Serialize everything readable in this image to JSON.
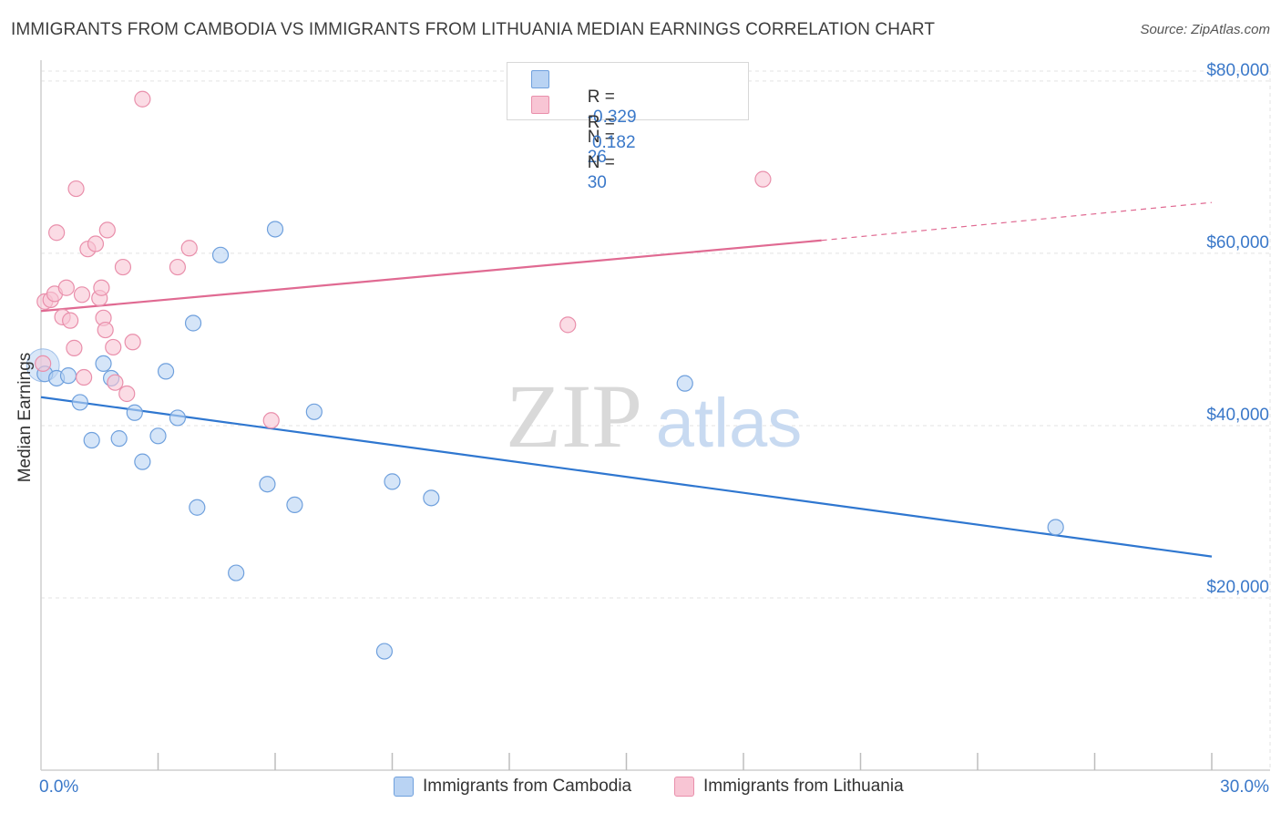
{
  "title": "IMMIGRANTS FROM CAMBODIA VS IMMIGRANTS FROM LITHUANIA MEDIAN EARNINGS CORRELATION CHART",
  "source": "Source: ZipAtlas.com",
  "watermark": {
    "zip": "ZIP",
    "atlas": "atlas"
  },
  "colors": {
    "blue_fill": "#b9d3f3",
    "blue_stroke": "#6fa0dd",
    "blue_line": "#2f77d0",
    "pink_fill": "#f8c5d4",
    "pink_stroke": "#e98fab",
    "pink_line": "#e06a92",
    "axis_label": "#3a78c9",
    "grid": "#e3e3e3"
  },
  "legend": {
    "rows": [
      {
        "r_label": "R =",
        "r_value": "-0.329",
        "n_label": "N =",
        "n_value": "26"
      },
      {
        "r_label": "R =",
        "r_value": " 0.182",
        "n_label": "N =",
        "n_value": "30"
      }
    ]
  },
  "bottom_legend": [
    "Immigrants from Cambodia",
    "Immigrants from Lithuania"
  ],
  "chart_data": {
    "type": "scatter",
    "xlabel": "",
    "ylabel": "Median Earnings",
    "xlim": [
      0,
      30
    ],
    "ylim": [
      0,
      82000
    ],
    "x_tick_labels": [
      "0.0%",
      "30.0%"
    ],
    "y_ticks": [
      20000,
      40000,
      60000,
      80000
    ],
    "y_tick_labels": [
      "$20,000",
      "$40,000",
      "$60,000",
      "$80,000"
    ],
    "grid": true,
    "legend_position": "top-center",
    "series": [
      {
        "name": "Immigrants from Cambodia",
        "color": "blue",
        "r": -0.329,
        "n": 26,
        "points": [
          [
            0.1,
            46000
          ],
          [
            0.4,
            45500
          ],
          [
            0.7,
            45800
          ],
          [
            1.0,
            42700
          ],
          [
            1.3,
            38300
          ],
          [
            1.6,
            47200
          ],
          [
            1.8,
            45500
          ],
          [
            2.0,
            38500
          ],
          [
            2.4,
            41500
          ],
          [
            2.6,
            35800
          ],
          [
            3.0,
            38800
          ],
          [
            3.2,
            46300
          ],
          [
            3.5,
            40900
          ],
          [
            3.9,
            51900
          ],
          [
            4.0,
            30500
          ],
          [
            4.6,
            59800
          ],
          [
            5.0,
            22900
          ],
          [
            5.8,
            33200
          ],
          [
            6.0,
            62800
          ],
          [
            6.5,
            30800
          ],
          [
            7.0,
            41600
          ],
          [
            8.8,
            13800
          ],
          [
            9.0,
            33500
          ],
          [
            10.0,
            31600
          ],
          [
            16.5,
            44900
          ],
          [
            26.0,
            28200
          ]
        ],
        "trend": {
          "x": [
            0,
            30
          ],
          "y": [
            43300,
            24800
          ]
        }
      },
      {
        "name": "Immigrants from Lithuania",
        "color": "pink",
        "r": 0.182,
        "n": 30,
        "points": [
          [
            0.05,
            47200
          ],
          [
            0.1,
            54400
          ],
          [
            0.25,
            54600
          ],
          [
            0.35,
            55300
          ],
          [
            0.4,
            62400
          ],
          [
            0.55,
            52600
          ],
          [
            0.65,
            56000
          ],
          [
            0.75,
            52200
          ],
          [
            0.85,
            49000
          ],
          [
            0.9,
            67500
          ],
          [
            1.05,
            55200
          ],
          [
            1.1,
            45600
          ],
          [
            1.2,
            60500
          ],
          [
            1.4,
            61100
          ],
          [
            1.5,
            54800
          ],
          [
            1.6,
            52500
          ],
          [
            1.65,
            51100
          ],
          [
            1.7,
            62700
          ],
          [
            1.85,
            49100
          ],
          [
            1.9,
            45000
          ],
          [
            2.1,
            58400
          ],
          [
            2.2,
            43700
          ],
          [
            2.35,
            49700
          ],
          [
            2.6,
            77900
          ],
          [
            3.5,
            58400
          ],
          [
            3.8,
            60600
          ],
          [
            5.9,
            40600
          ],
          [
            13.5,
            51700
          ],
          [
            18.5,
            68600
          ],
          [
            1.55,
            56000
          ]
        ],
        "trend": {
          "x": [
            0,
            20
          ],
          "y": [
            53300,
            61500
          ]
        },
        "trend_dashed": {
          "x": [
            20,
            30
          ],
          "y": [
            61500,
            65900
          ]
        }
      }
    ]
  }
}
